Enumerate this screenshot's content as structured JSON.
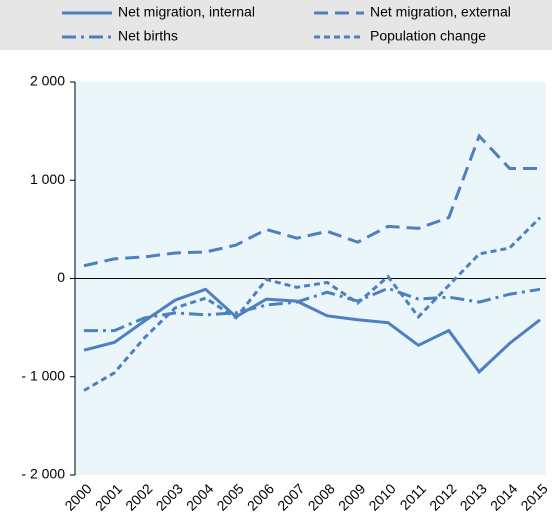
{
  "chart_data": {
    "type": "line",
    "categories": [
      "2000",
      "2001",
      "2002",
      "2003",
      "2004",
      "2005",
      "2006",
      "2007",
      "2008",
      "2009",
      "2010",
      "2011",
      "2012",
      "2013",
      "2014",
      "2015"
    ],
    "series": [
      {
        "name": "Net migration, internal",
        "color": "#4e7fc0",
        "values": [
          -730,
          -650,
          -430,
          -220,
          -110,
          -390,
          -210,
          -230,
          -380,
          -420,
          -450,
          -680,
          -530,
          -950,
          -660,
          -420
        ]
      },
      {
        "name": "Net migration, external",
        "color": "#4e7fc0",
        "values": [
          130,
          200,
          220,
          260,
          270,
          340,
          500,
          410,
          480,
          370,
          530,
          510,
          620,
          1450,
          1120,
          1120
        ]
      },
      {
        "name": "Net births",
        "color": "#4e7fc0",
        "values": [
          -530,
          -530,
          -400,
          -350,
          -370,
          -350,
          -270,
          -240,
          -140,
          -230,
          -100,
          -210,
          -190,
          -240,
          -160,
          -110
        ]
      },
      {
        "name": "Population change",
        "color": "#4e7fc0",
        "values": [
          -1140,
          -960,
          -600,
          -300,
          -200,
          -400,
          -10,
          -90,
          -40,
          -250,
          20,
          -390,
          -70,
          250,
          310,
          620
        ]
      }
    ],
    "ylim": [
      -2000,
      2000
    ],
    "yticks": [
      {
        "value": -2000,
        "label": "- 2 000"
      },
      {
        "value": -1000,
        "label": "- 1 000"
      },
      0,
      {
        "value": 1000,
        "label": "1 000"
      },
      {
        "value": 2000,
        "label": "2 000"
      }
    ]
  }
}
